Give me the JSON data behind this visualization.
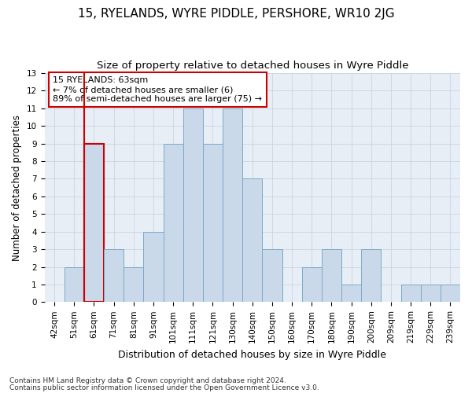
{
  "title1": "15, RYELANDS, WYRE PIDDLE, PERSHORE, WR10 2JG",
  "title2": "Size of property relative to detached houses in Wyre Piddle",
  "xlabel": "Distribution of detached houses by size in Wyre Piddle",
  "ylabel": "Number of detached properties",
  "footer1": "Contains HM Land Registry data © Crown copyright and database right 2024.",
  "footer2": "Contains public sector information licensed under the Open Government Licence v3.0.",
  "annotation_line1": "15 RYELANDS: 63sqm",
  "annotation_line2": "← 7% of detached houses are smaller (6)",
  "annotation_line3": "89% of semi-detached houses are larger (75) →",
  "bar_labels": [
    "42sqm",
    "51sqm",
    "61sqm",
    "71sqm",
    "81sqm",
    "91sqm",
    "101sqm",
    "111sqm",
    "121sqm",
    "130sqm",
    "140sqm",
    "150sqm",
    "160sqm",
    "170sqm",
    "180sqm",
    "190sqm",
    "200sqm",
    "209sqm",
    "219sqm",
    "229sqm",
    "239sqm"
  ],
  "bar_values": [
    0,
    2,
    9,
    3,
    2,
    4,
    9,
    11,
    9,
    11,
    7,
    3,
    0,
    2,
    3,
    1,
    3,
    0,
    1,
    1,
    1
  ],
  "bar_color": "#c9d9ea",
  "bar_edge_color": "#7aaac8",
  "highlight_bar_index": 2,
  "highlight_edge_color": "#cc0000",
  "vline_x": 1.5,
  "ylim": [
    0,
    13
  ],
  "yticks": [
    0,
    1,
    2,
    3,
    4,
    5,
    6,
    7,
    8,
    9,
    10,
    11,
    12,
    13
  ],
  "grid_color": "#c8d4e4",
  "bg_color": "#e8eef6",
  "annotation_box_color": "#ffffff",
  "annotation_box_edge": "#cc0000",
  "title1_fontsize": 11,
  "title2_fontsize": 9.5,
  "xlabel_fontsize": 9,
  "ylabel_fontsize": 8.5,
  "tick_fontsize": 7.5,
  "footer_fontsize": 6.5,
  "ann_fontsize": 8
}
